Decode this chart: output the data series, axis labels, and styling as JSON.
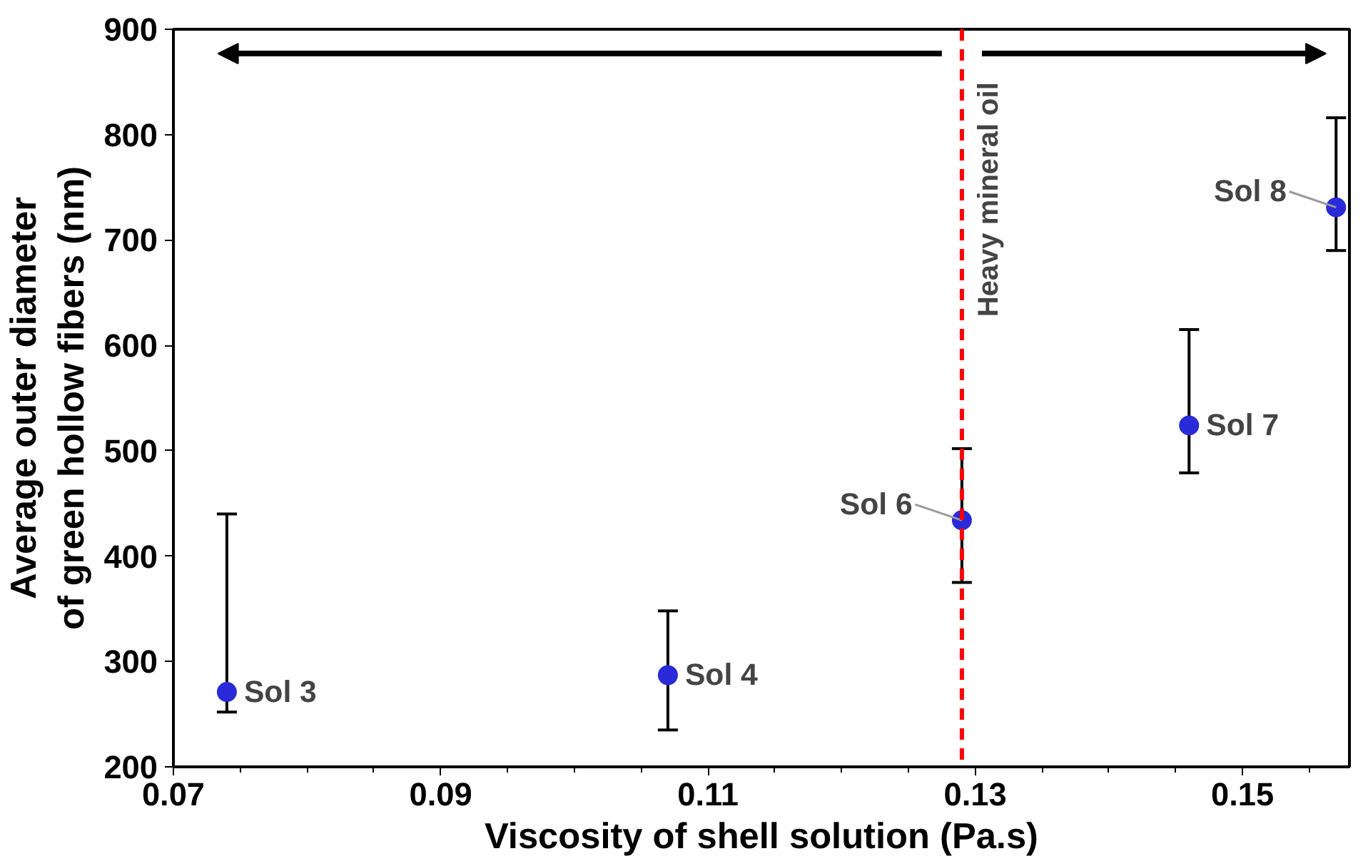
{
  "chart_data": {
    "type": "scatter",
    "xlabel": "Viscosity of shell solution (Pa.s)",
    "ylabel": "Average outer diameter\nof green hollow fibers (nm)",
    "x": [
      0.074,
      0.107,
      0.129,
      0.146,
      0.157
    ],
    "series": [
      {
        "color": "#2a2ad8",
        "values": [
          271,
          287,
          434,
          524,
          731
        ],
        "errors": [
          [
            252,
            440
          ],
          [
            235,
            348
          ],
          [
            375,
            502
          ],
          [
            479,
            615
          ],
          [
            690,
            816
          ]
        ]
      }
    ],
    "xlim": [
      0.07,
      0.158
    ],
    "xticks": [
      0.07,
      0.09,
      0.11,
      0.13,
      0.15
    ],
    "ylim": [
      200,
      900
    ],
    "yticks": [
      200,
      300,
      400,
      500,
      600,
      700,
      800,
      900
    ],
    "ref_lines": [
      {
        "axis": "x",
        "value": 0.129,
        "label": "Heavy mineral oil",
        "color": "#ff0000",
        "line_style": "dashed"
      }
    ],
    "annotations": [
      {
        "text": "Sol 3",
        "x": 0.074,
        "y": 271
      },
      {
        "text": "Sol 4",
        "x": 0.107,
        "y": 287
      },
      {
        "text": "Sol 6",
        "x": 0.129,
        "y": 434
      },
      {
        "text": "Sol 7",
        "x": 0.146,
        "y": 524
      },
      {
        "text": "Sol 8",
        "x": 0.157,
        "y": 731
      }
    ],
    "grid": false,
    "marker": "circle"
  }
}
